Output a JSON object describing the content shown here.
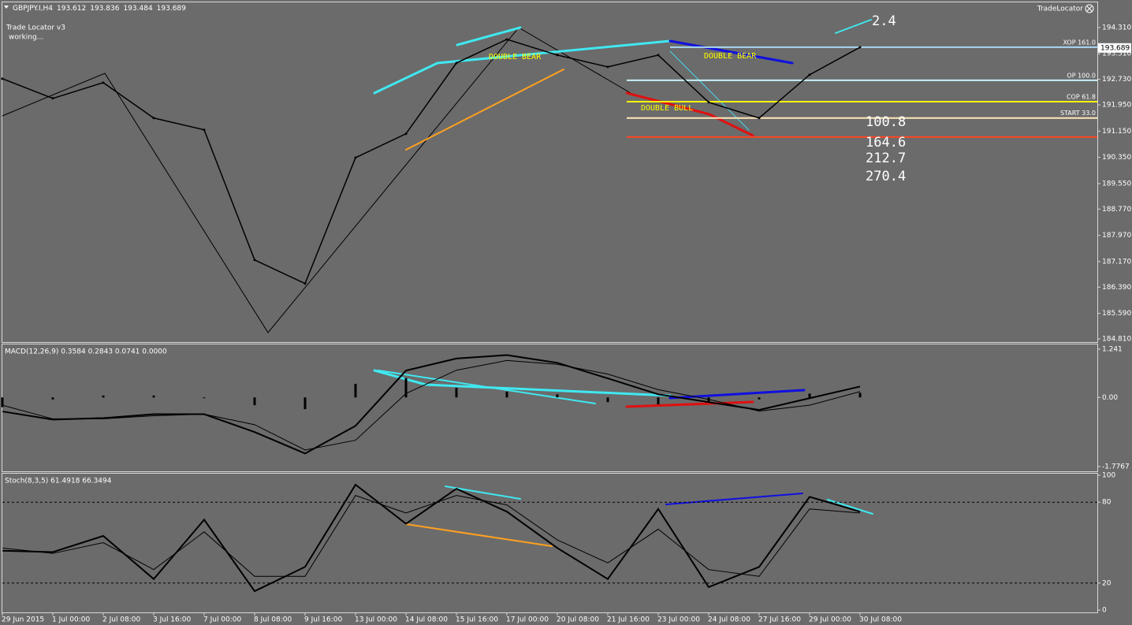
{
  "chart_data": [
    {
      "type": "line",
      "title": "GBPJPY.I,H4",
      "quote": [
        193.612,
        193.836,
        193.484,
        193.689
      ],
      "indicator_name": "Trade Locator v3",
      "status": "working...",
      "corner_label": "TradeLocator",
      "last_price": {
        "value": 193.689,
        "label": "193.689"
      },
      "categories": [
        "29 Jun 2015",
        "1 Jul 00:00",
        "2 Jul 08:00",
        "3 Jul 16:00",
        "7 Jul 00:00",
        "8 Jul 08:00",
        "9 Jul 16:00",
        "13 Jul 00:00",
        "14 Jul 08:00",
        "15 Jul 16:00",
        "17 Jul 00:00",
        "20 Jul 08:00",
        "21 Jul 16:00",
        "23 Jul 00:00",
        "24 Jul 08:00",
        "27 Jul 16:00",
        "29 Jul 00:00",
        "30 Jul 08:00"
      ],
      "values": [
        192.75,
        192.15,
        192.63,
        191.55,
        191.19,
        187.22,
        186.5,
        190.34,
        191.07,
        193.23,
        193.95,
        193.47,
        193.11,
        193.47,
        192.03,
        191.55,
        192.87,
        193.71
      ],
      "color": "#000000",
      "ylim": [
        184.714,
        195.055
      ],
      "yticks": [
        {
          "value": 194.31,
          "label": "194.310"
        },
        {
          "value": 193.51,
          "label": "193.510"
        },
        {
          "value": 192.73,
          "label": "192.730"
        },
        {
          "value": 191.95,
          "label": "191.950"
        },
        {
          "value": 191.15,
          "label": "191.150"
        },
        {
          "value": 190.35,
          "label": "190.350"
        },
        {
          "value": 189.55,
          "label": "189.550"
        },
        {
          "value": 188.77,
          "label": "188.770"
        },
        {
          "value": 187.97,
          "label": "187.970"
        },
        {
          "value": 187.17,
          "label": "187.170"
        },
        {
          "value": 186.39,
          "label": "186.390"
        },
        {
          "value": 185.59,
          "label": "185.590"
        },
        {
          "value": 184.81,
          "label": "184.810"
        }
      ],
      "levels": [
        {
          "label": "XOP 161.0",
          "value": 193.71,
          "color": "#a8d8f0"
        },
        {
          "label": "OP 100.0",
          "value": 192.7,
          "color": "#c8f0f8"
        },
        {
          "label": "COP 61.8",
          "value": 192.05,
          "color": "#ffff00"
        },
        {
          "label": "START 33.0",
          "value": 191.55,
          "color": "#ffe8b8"
        },
        {
          "value": 190.97,
          "color": "#ff4422"
        }
      ],
      "annotations": [
        "DOUBLE BEAR",
        "DOUBLE BEAR",
        "DOUBLE BULL"
      ],
      "projections": [
        {
          "value": 2.4,
          "color": "#a8d8f0"
        },
        {
          "value": 100.8,
          "color": "#c8f0f8"
        },
        {
          "value": 164.6,
          "color": "#ffff00"
        },
        {
          "value": 212.7,
          "color": "#ffffff"
        },
        {
          "value": 270.4,
          "color": "#ff4422"
        }
      ]
    },
    {
      "type": "macd",
      "title": "MACD(12,26,9) 0.3584 0.2843 0.0741 0.0000",
      "ylim": [
        -1.7767,
        1.241
      ],
      "yticks": [
        1.241,
        {
          "value": 0,
          "label": "0.00"
        },
        -1.7767
      ],
      "series": [
        {
          "style": "bar",
          "color": "#000000",
          "values": [
            -0.25,
            -0.05,
            0.05,
            0.05,
            -0.02,
            -0.2,
            -0.3,
            0.35,
            0.5,
            0.25,
            0.15,
            0.08,
            -0.12,
            -0.18,
            -0.12,
            -0.05,
            0.1,
            0.12
          ]
        },
        {
          "style": "line",
          "color": "#000000",
          "width": 2,
          "values": [
            -0.36,
            -0.57,
            -0.53,
            -0.43,
            -0.43,
            -0.89,
            -1.44,
            -0.73,
            0.69,
            1.0,
            1.09,
            0.89,
            0.49,
            0.08,
            -0.12,
            -0.32,
            -0.02,
            0.28
          ]
        },
        {
          "style": "line",
          "color": "#000000",
          "width": 1,
          "values": [
            -0.2,
            -0.55,
            -0.55,
            -0.47,
            -0.43,
            -0.7,
            -1.35,
            -1.1,
            0.1,
            0.7,
            0.95,
            0.85,
            0.6,
            0.2,
            -0.05,
            -0.35,
            -0.2,
            0.15
          ]
        }
      ]
    },
    {
      "type": "stoch",
      "title": "Stoch(8,3,5) 61.4918 66.3494",
      "ylim": [
        0,
        100
      ],
      "yticks": [
        100,
        80,
        20,
        0
      ],
      "levels": [
        80,
        20
      ],
      "series": [
        {
          "style": "line",
          "color": "#000000",
          "width": 2,
          "values": [
            44,
            43,
            55,
            23,
            67,
            14,
            32,
            93,
            64,
            90,
            73,
            46,
            23,
            75,
            17,
            32,
            84,
            73
          ]
        },
        {
          "style": "line",
          "color": "#000000",
          "width": 1,
          "values": [
            46,
            42,
            50,
            30,
            58,
            25,
            25,
            85,
            72,
            85,
            78,
            52,
            35,
            60,
            30,
            25,
            75,
            72
          ]
        }
      ]
    }
  ]
}
